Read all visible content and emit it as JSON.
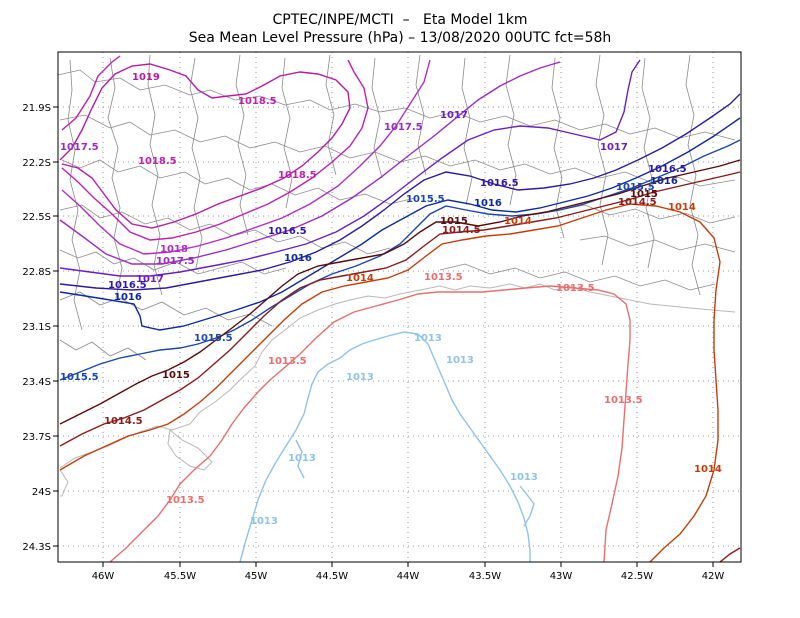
{
  "header": {
    "title_line1": "CPTEC/INPE/MCTI  –   Eta Model 1km",
    "title_line2": "Sea Mean Level Pressure (hPa) – 13/08/2020 00UTC fct=58h"
  },
  "axes": {
    "x_ticks": [
      "46W",
      "45.5W",
      "45W",
      "44.5W",
      "44W",
      "43.5W",
      "43W",
      "42.5W",
      "42W"
    ],
    "y_ticks": [
      "21.9S",
      "22.2S",
      "22.5S",
      "22.8S",
      "23.1S",
      "23.4S",
      "23.7S",
      "24S",
      "24.3S"
    ]
  },
  "colors": {
    "c1013": "#8fc3ea",
    "c1013_5": "#e96e6e",
    "c1014": "#c43e0c",
    "c1014_5": "#8b1a1a",
    "c1015": "#5a0a0a",
    "c1015_5": "#1a46b0",
    "c1016": "#0d2a9c",
    "c1016_5": "#2d1a9e",
    "c1017": "#6b1fc2",
    "c1017_5": "#9a2ac8",
    "c1018": "#b22cc4",
    "c1018_5": "#c21fb0",
    "c1019": "#b81aa8",
    "border": "#8a8a8a",
    "coast": "#b8b8b8"
  },
  "labels": {
    "l1019": "1019",
    "l1018_5a": "1018.5",
    "l1018_5b": "1018.5",
    "l1018_5c": "1018.5",
    "l1017_5a": "1017.5",
    "l1017_5b": "1017.5",
    "l1017_5c": "1017.5",
    "l1017a": "1017",
    "l1017b": "1017",
    "l1017c": "1017",
    "l1018": "1018",
    "l1016_5a": "1016.5",
    "l1016_5b": "1016.5",
    "l1016_5c": "1016.5",
    "l1016_5d": "1016.5",
    "l1016a": "1016",
    "l1016b": "1016",
    "l1016c": "1016",
    "l1016d": "1016",
    "l1015_5a": "1015.5",
    "l1015_5b": "1015.5",
    "l1015_5c": "1015.5",
    "l1015_5d": "1015.5",
    "l1015a": "1015",
    "l1015b": "1015",
    "l1015c": "1015",
    "l1014_5a": "1014.5",
    "l1014_5b": "1014.5",
    "l1014_5c": "1014.5",
    "l1014a": "1014",
    "l1014b": "1014",
    "l1014c": "1014",
    "l1014d": "1014",
    "l1013_5a": "1013.5",
    "l1013_5b": "1013.5",
    "l1013_5c": "1013.5",
    "l1013_5d": "1013.5",
    "l1013_5e": "1013.5",
    "l1013a": "1013",
    "l1013b": "1013",
    "l1013c": "1013",
    "l1013d": "1013",
    "l1013e": "1013",
    "l1013f": "1013"
  }
}
